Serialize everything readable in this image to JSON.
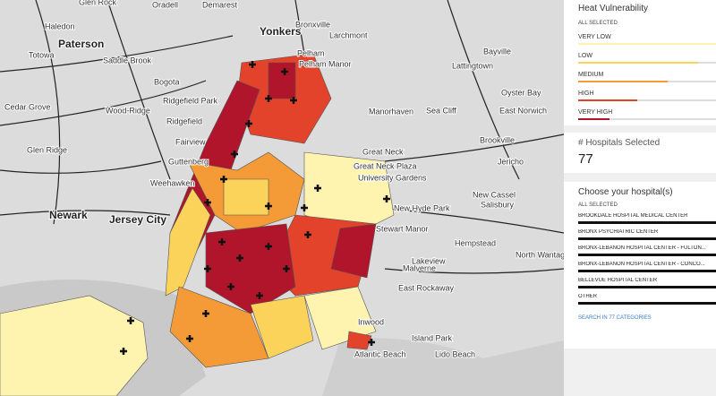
{
  "map": {
    "labels": [
      "Glen Rock",
      "Oradell",
      "Demarest",
      "Haledon",
      "Paterson",
      "Yonkers",
      "Bronxville",
      "Larchmont",
      "Totowa",
      "Saddle Brook",
      "Pelham",
      "Pelham Manor",
      "Bayville",
      "Lattingtown",
      "Bogota",
      "Cedar Grove",
      "Wood-Ridge",
      "Ridgefield Park",
      "Ridgefield",
      "Manorhaven",
      "Oyster Bay",
      "Sea Cliff",
      "East Norwich",
      "Fairview",
      "Glen Ridge",
      "Great Neck",
      "Brookville",
      "Guttenberg",
      "Great Neck Plaza",
      "University Gardens",
      "Jericho",
      "Weehawken",
      "Newark",
      "Jersey City",
      "New Hyde Park",
      "New Cassel",
      "Salisbury",
      "Stewart Manor",
      "Hempstead",
      "Lakeview",
      "Malverne",
      "North Wantagh",
      "East Rockaway",
      "Inwood",
      "Island Park",
      "Atlantic Beach",
      "Lido Beach"
    ]
  },
  "panel": {
    "heat": {
      "title": "Heat Vulnerability",
      "all": "ALL SELECTED",
      "levels": [
        {
          "label": "VERY LOW",
          "color": "#fff3b0",
          "value": 100
        },
        {
          "label": "LOW",
          "color": "#fbd35a",
          "value": 87
        },
        {
          "label": "MEDIUM",
          "color": "#f49a36",
          "value": 65
        },
        {
          "label": "HIGH",
          "color": "#e2432a",
          "value": 43
        },
        {
          "label": "VERY HIGH",
          "color": "#b0152b",
          "value": 23
        }
      ]
    },
    "count": {
      "title": "# Hospitals Selected",
      "value": 77
    },
    "hospitals": {
      "title": "Choose your hospital(s)",
      "all": "ALL SELECTED",
      "items": [
        "BROOKDALE HOSPITAL MEDICAL CENTER",
        "BRONX PSYCHIATRIC CENTER",
        "BRONX-LEBANON HOSPITAL CENTER - FULTON...",
        "BRONX-LEBANON HOSPITAL CENTER - CONCO...",
        "BELLEVUE HOSPITAL CENTER",
        "OTHER"
      ],
      "search": "SEARCH IN 77 CATEGORIES"
    }
  }
}
